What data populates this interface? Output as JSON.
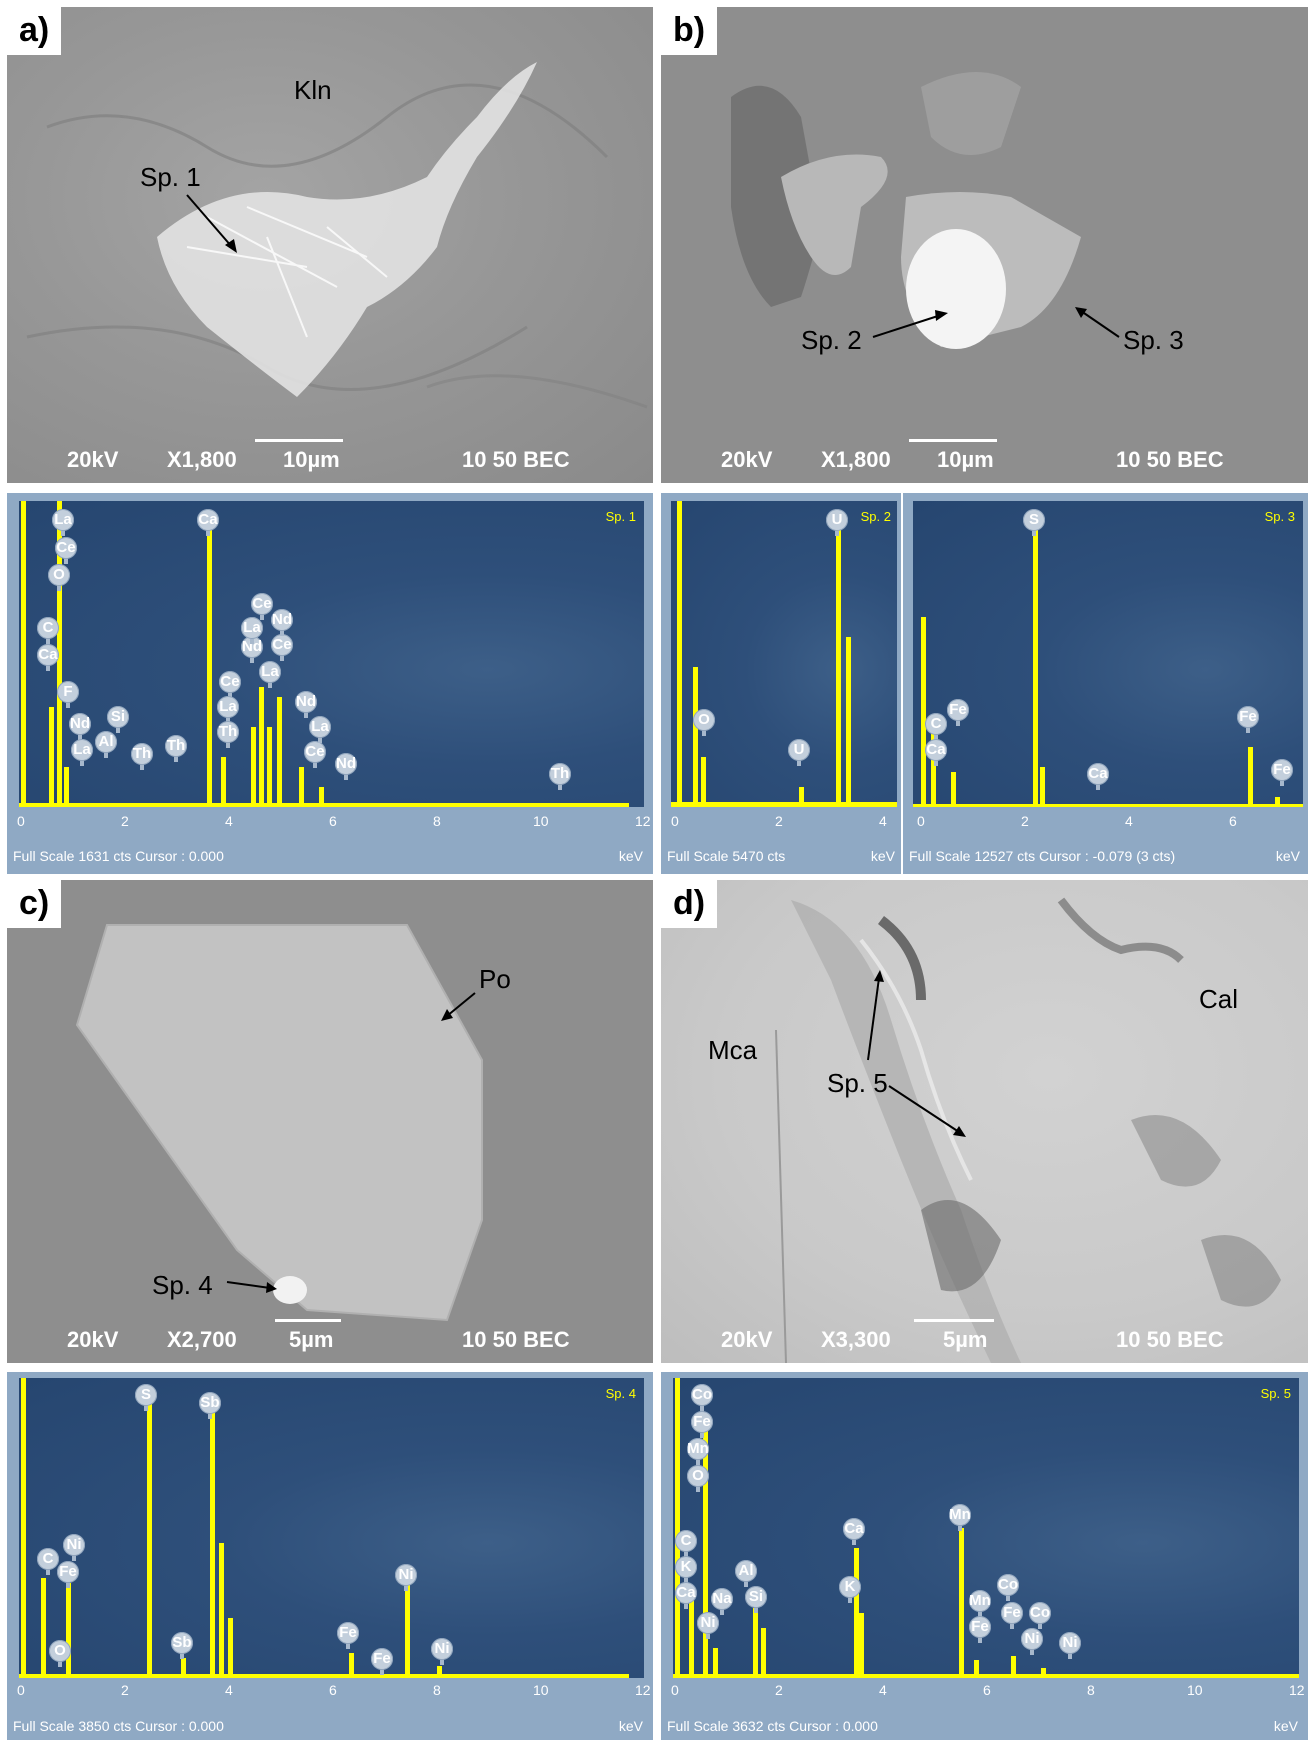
{
  "panel_a": {
    "letter": "a)",
    "kln": "Kln",
    "sp": "Sp. 1",
    "kv": "20kV",
    "mag": "X1,800",
    "scale": "10µm",
    "mode": "10 50 BEC"
  },
  "panel_b": {
    "letter": "b)",
    "sp2": "Sp. 2",
    "sp3": "Sp. 3",
    "kv": "20kV",
    "mag": "X1,800",
    "scale": "10µm",
    "mode": "10 50 BEC"
  },
  "panel_c": {
    "letter": "c)",
    "po": "Po",
    "sp": "Sp. 4",
    "kv": "20kV",
    "mag": "X2,700",
    "scale": "5µm",
    "mode": "10 50 BEC"
  },
  "panel_d": {
    "letter": "d)",
    "mca": "Mca",
    "cal": "Cal",
    "sp": "Sp. 5",
    "kv": "20kV",
    "mag": "X3,300",
    "scale": "5µm",
    "mode": "10 50 BEC"
  },
  "eds_sp1": {
    "tag": "Sp. 1",
    "full_scale": "Full Scale  1631  cts  Cursor : 0.000",
    "unit": "keV",
    "ticks": [
      "0",
      "2",
      "4",
      "6",
      "8",
      "10",
      "12"
    ],
    "elements": [
      "La",
      "Ce",
      "O",
      "C",
      "Ca",
      "F",
      "Nd",
      "La",
      "Al",
      "Si",
      "Th",
      "Th",
      "Ca",
      "Ce",
      "La",
      "Nd",
      "Ce",
      "La",
      "Th",
      "Ce",
      "Nd",
      "Ce",
      "La",
      "Nd",
      "La",
      "Ce",
      "Nd",
      "Th"
    ]
  },
  "eds_sp2": {
    "tag": "Sp. 2",
    "full_scale": "Full Scale  5470  cts",
    "unit": "keV",
    "ticks": [
      "0",
      "2",
      "4"
    ],
    "elements": [
      "O",
      "U",
      "U"
    ]
  },
  "eds_sp3": {
    "tag": "Sp. 3",
    "full_scale": "Full Scale  12527  cts  Cursor : -0.079   (3 cts)",
    "unit": "keV",
    "ticks": [
      "0",
      "2",
      "4",
      "6"
    ],
    "elements": [
      "C",
      "Fe",
      "Ca",
      "S",
      "Ca",
      "Fe",
      "Fe"
    ]
  },
  "eds_sp4": {
    "tag": "Sp. 4",
    "full_scale": "Full Scale  3850  cts  Cursor : 0.000",
    "unit": "keV",
    "ticks": [
      "0",
      "2",
      "4",
      "6",
      "8",
      "10",
      "12"
    ],
    "elements": [
      "C",
      "Ni",
      "Fe",
      "O",
      "S",
      "Sb",
      "Sb",
      "Fe",
      "Fe",
      "Ni",
      "Ni"
    ]
  },
  "eds_sp5": {
    "tag": "Sp. 5",
    "full_scale": "Full Scale  3632  cts  Cursor : 0.000",
    "unit": "keV",
    "ticks": [
      "0",
      "2",
      "4",
      "6",
      "8",
      "10",
      "12"
    ],
    "elements": [
      "Co",
      "Fe",
      "Mn",
      "O",
      "C",
      "K",
      "Ca",
      "Ni",
      "Na",
      "Al",
      "Si",
      "Ca",
      "K",
      "Mn",
      "Mn",
      "Co",
      "Fe",
      "Fe",
      "Co",
      "Ni",
      "Ni"
    ]
  }
}
